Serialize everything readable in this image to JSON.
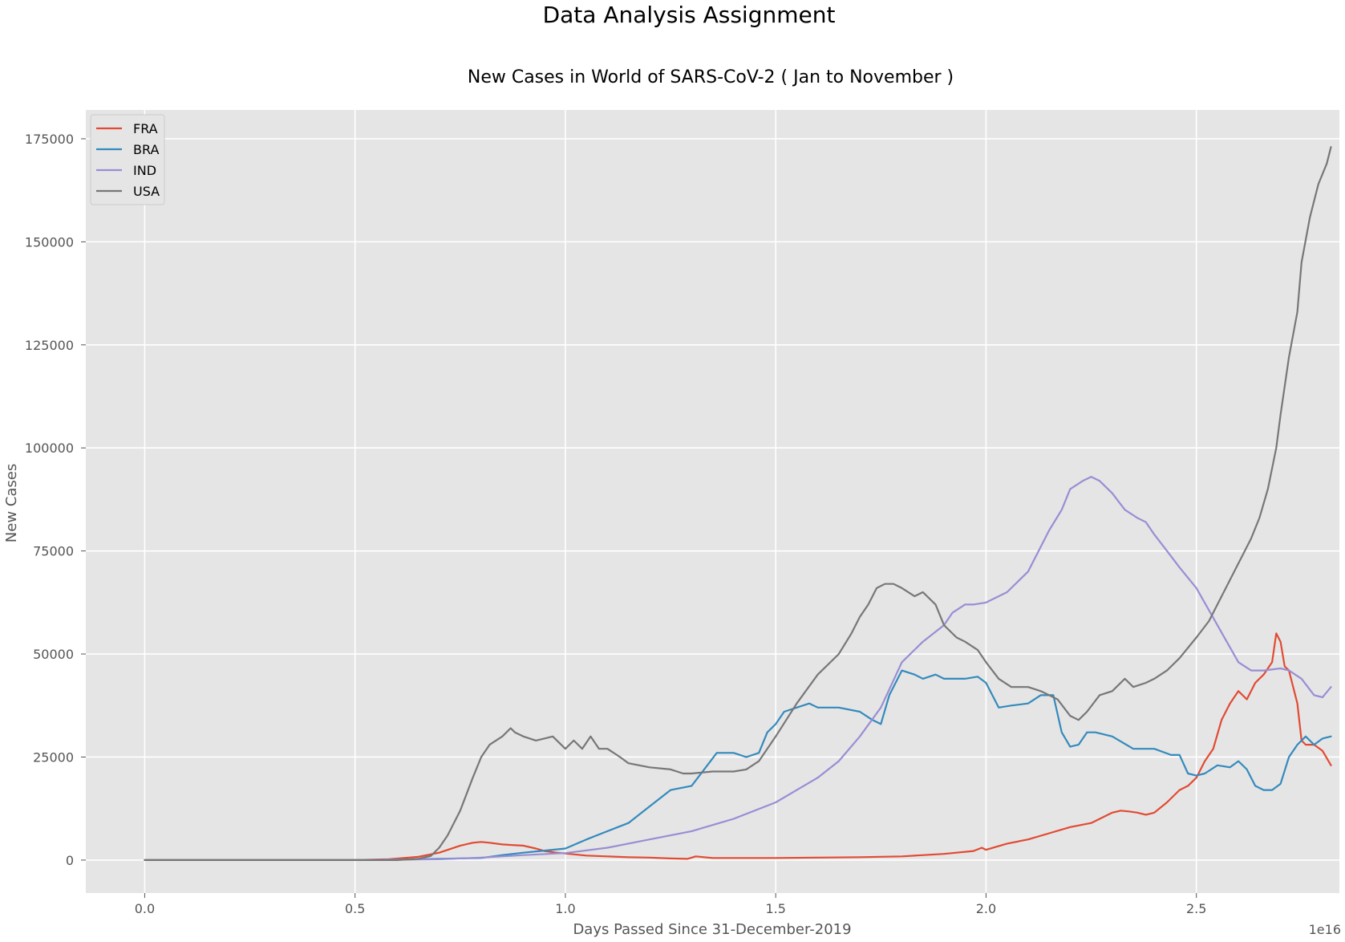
{
  "suptitle": "Data Analysis Assignment",
  "chart_data": {
    "type": "line",
    "title": "New Cases in World of  SARS-CoV-2  ( Jan to November )",
    "xlabel": "Days Passed Since 31-December-2019",
    "ylabel": "New Cases",
    "x_offset_label": "1e16",
    "xlim": [
      -0.14,
      2.84
    ],
    "ylim": [
      -8000,
      182000
    ],
    "xticks": [
      0.0,
      0.5,
      1.0,
      1.5,
      2.0,
      2.5
    ],
    "xtick_labels": [
      "0.0",
      "0.5",
      "1.0",
      "1.5",
      "2.0",
      "2.5"
    ],
    "yticks": [
      0,
      25000,
      50000,
      75000,
      100000,
      125000,
      150000,
      175000
    ],
    "ytick_labels": [
      "0",
      "25000",
      "50000",
      "75000",
      "100000",
      "125000",
      "150000",
      "175000"
    ],
    "grid": true,
    "legend_location": "upper left",
    "series": [
      {
        "name": "FRA",
        "color": "#E24A33",
        "x": [
          0.0,
          0.5,
          0.58,
          0.65,
          0.7,
          0.75,
          0.78,
          0.8,
          0.82,
          0.85,
          0.88,
          0.9,
          0.93,
          0.95,
          0.98,
          1.0,
          1.05,
          1.1,
          1.15,
          1.2,
          1.25,
          1.29,
          1.31,
          1.35,
          1.4,
          1.5,
          1.6,
          1.7,
          1.8,
          1.9,
          1.97,
          1.99,
          2.0,
          2.05,
          2.1,
          2.15,
          2.2,
          2.25,
          2.3,
          2.32,
          2.34,
          2.36,
          2.38,
          2.4,
          2.43,
          2.46,
          2.48,
          2.5,
          2.52,
          2.54,
          2.56,
          2.58,
          2.6,
          2.62,
          2.64,
          2.66,
          2.68,
          2.69,
          2.7,
          2.71,
          2.72,
          2.74,
          2.75,
          2.76,
          2.78,
          2.8,
          2.82
        ],
        "y": [
          0,
          0,
          200,
          800,
          1800,
          3500,
          4200,
          4400,
          4200,
          3800,
          3600,
          3500,
          2800,
          2200,
          1800,
          1600,
          1100,
          900,
          700,
          600,
          400,
          300,
          900,
          500,
          500,
          500,
          600,
          700,
          900,
          1500,
          2200,
          3000,
          2500,
          4000,
          5000,
          6500,
          8000,
          9000,
          11500,
          12000,
          11800,
          11500,
          11000,
          11500,
          14000,
          17000,
          18000,
          20000,
          24000,
          27000,
          34000,
          38000,
          41000,
          39000,
          43000,
          45000,
          48000,
          55000,
          53000,
          47000,
          46000,
          38000,
          29000,
          28000,
          28000,
          26500,
          23000
        ]
      },
      {
        "name": "BRA",
        "color": "#348ABD",
        "x": [
          0.0,
          0.5,
          0.6,
          0.7,
          0.8,
          0.85,
          0.9,
          0.95,
          1.0,
          1.05,
          1.1,
          1.15,
          1.2,
          1.25,
          1.3,
          1.33,
          1.36,
          1.4,
          1.43,
          1.46,
          1.48,
          1.5,
          1.52,
          1.55,
          1.58,
          1.6,
          1.65,
          1.7,
          1.73,
          1.75,
          1.77,
          1.8,
          1.83,
          1.85,
          1.88,
          1.9,
          1.95,
          1.98,
          2.0,
          2.03,
          2.06,
          2.1,
          2.13,
          2.16,
          2.18,
          2.2,
          2.22,
          2.24,
          2.26,
          2.3,
          2.35,
          2.4,
          2.44,
          2.46,
          2.48,
          2.5,
          2.52,
          2.55,
          2.58,
          2.6,
          2.62,
          2.64,
          2.66,
          2.68,
          2.7,
          2.72,
          2.74,
          2.76,
          2.78,
          2.8,
          2.82
        ],
        "y": [
          0,
          0,
          100,
          300,
          500,
          1200,
          1800,
          2300,
          2800,
          5000,
          7000,
          9000,
          13000,
          17000,
          18000,
          22000,
          26000,
          26000,
          25000,
          26000,
          31000,
          33000,
          36000,
          37000,
          38000,
          37000,
          37000,
          36000,
          34000,
          33000,
          40000,
          46000,
          45000,
          44000,
          45000,
          44000,
          44000,
          44500,
          43000,
          37000,
          37500,
          38000,
          40000,
          40000,
          31000,
          27500,
          28000,
          31000,
          31000,
          30000,
          27000,
          27000,
          25500,
          25500,
          21000,
          20500,
          21000,
          23000,
          22500,
          24000,
          22000,
          18000,
          17000,
          17000,
          18500,
          25000,
          28000,
          30000,
          28000,
          29500,
          30000
        ]
      },
      {
        "name": "IND",
        "color": "#988ED5",
        "x": [
          0.0,
          0.5,
          0.7,
          0.8,
          0.9,
          1.0,
          1.1,
          1.2,
          1.3,
          1.4,
          1.5,
          1.55,
          1.6,
          1.65,
          1.7,
          1.75,
          1.8,
          1.85,
          1.9,
          1.92,
          1.95,
          1.97,
          2.0,
          2.05,
          2.1,
          2.15,
          2.18,
          2.2,
          2.23,
          2.25,
          2.27,
          2.3,
          2.33,
          2.36,
          2.38,
          2.4,
          2.43,
          2.46,
          2.5,
          2.55,
          2.6,
          2.63,
          2.66,
          2.7,
          2.72,
          2.75,
          2.78,
          2.8,
          2.82
        ],
        "y": [
          0,
          0,
          200,
          600,
          1200,
          1700,
          3000,
          5000,
          7000,
          10000,
          14000,
          17000,
          20000,
          24000,
          30000,
          37000,
          48000,
          53000,
          57000,
          60000,
          62000,
          62000,
          62500,
          65000,
          70000,
          80000,
          85000,
          90000,
          92000,
          93000,
          92000,
          89000,
          85000,
          83000,
          82000,
          79000,
          75000,
          71000,
          66000,
          57000,
          48000,
          46000,
          46000,
          46500,
          46000,
          44000,
          40000,
          39500,
          42000
        ]
      },
      {
        "name": "USA",
        "color": "#777777",
        "x": [
          0.0,
          0.5,
          0.6,
          0.65,
          0.68,
          0.7,
          0.72,
          0.75,
          0.78,
          0.8,
          0.82,
          0.85,
          0.87,
          0.88,
          0.9,
          0.93,
          0.95,
          0.97,
          1.0,
          1.02,
          1.04,
          1.06,
          1.08,
          1.1,
          1.13,
          1.15,
          1.2,
          1.25,
          1.28,
          1.3,
          1.35,
          1.4,
          1.43,
          1.46,
          1.5,
          1.55,
          1.6,
          1.65,
          1.68,
          1.7,
          1.72,
          1.74,
          1.76,
          1.78,
          1.8,
          1.83,
          1.85,
          1.88,
          1.9,
          1.93,
          1.95,
          1.98,
          2.0,
          2.03,
          2.06,
          2.1,
          2.13,
          2.15,
          2.17,
          2.2,
          2.22,
          2.24,
          2.27,
          2.3,
          2.33,
          2.35,
          2.38,
          2.4,
          2.43,
          2.46,
          2.5,
          2.53,
          2.55,
          2.57,
          2.6,
          2.63,
          2.65,
          2.67,
          2.69,
          2.7,
          2.72,
          2.74,
          2.75,
          2.77,
          2.79,
          2.81,
          2.82
        ],
        "y": [
          0,
          0,
          0,
          300,
          1000,
          3000,
          6000,
          12000,
          20000,
          25000,
          28000,
          30000,
          32000,
          31000,
          30000,
          29000,
          29500,
          30000,
          27000,
          29000,
          27000,
          30000,
          27000,
          27000,
          25000,
          23500,
          22500,
          22000,
          21000,
          21000,
          21500,
          21500,
          22000,
          24000,
          30000,
          38000,
          45000,
          50000,
          55000,
          59000,
          62000,
          66000,
          67000,
          67000,
          66000,
          64000,
          65000,
          62000,
          57000,
          54000,
          53000,
          51000,
          48000,
          44000,
          42000,
          42000,
          41000,
          40000,
          39000,
          35000,
          34000,
          36000,
          40000,
          41000,
          44000,
          42000,
          43000,
          44000,
          46000,
          49000,
          54000,
          58000,
          62000,
          66000,
          72000,
          78000,
          83000,
          90000,
          100000,
          108000,
          122000,
          133000,
          145000,
          156000,
          164000,
          169000,
          173000
        ]
      }
    ]
  }
}
